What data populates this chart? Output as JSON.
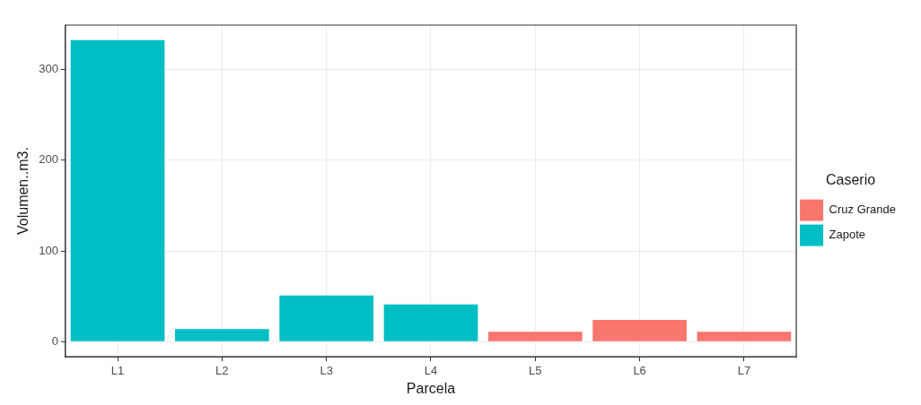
{
  "chart_data": {
    "type": "bar",
    "xlabel": "Parcela",
    "ylabel": "Volumen..m3.",
    "legend_title": "Caserio",
    "categories": [
      "L1",
      "L2",
      "L3",
      "L4",
      "L5",
      "L6",
      "L7"
    ],
    "series": [
      {
        "name": "Cruz Grande",
        "color": "#f8766d",
        "values": [
          null,
          null,
          null,
          null,
          11,
          24,
          11
        ]
      },
      {
        "name": "Zapote",
        "color": "#00bfc4",
        "values": [
          332,
          14,
          51,
          41,
          null,
          null,
          null
        ]
      }
    ],
    "ylim": [
      -16.6,
      348.6
    ],
    "yticks": [
      0,
      100,
      200,
      300
    ],
    "grid": true,
    "legend": "right"
  }
}
